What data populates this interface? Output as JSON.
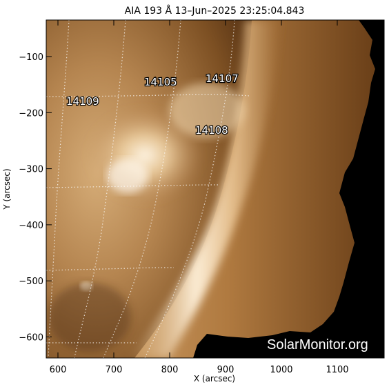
{
  "title": "AIA 193 Å 13–Jun–2025 23:25:04.843",
  "x_axis": {
    "label": "X (arcsec)",
    "ticks": [
      "600",
      "700",
      "800",
      "900",
      "1000",
      "1100"
    ]
  },
  "y_axis": {
    "label": "Y (arcsec)",
    "ticks": [
      "−100",
      "−200",
      "−300",
      "−400",
      "−500",
      "−600"
    ]
  },
  "regions": [
    {
      "id": "14109",
      "label": "14109"
    },
    {
      "id": "14105",
      "label": "14105"
    },
    {
      "id": "14107",
      "label": "14107"
    },
    {
      "id": "14108",
      "label": "14108"
    }
  ],
  "credit": "SolarMonitor.org",
  "colors": {
    "disk_dark": "#5a3514",
    "disk_mid": "#a8773f",
    "disk_bright": "#f0d8b0",
    "limb_glow": "#fff4e0",
    "corona_outer": "#8a5a26",
    "space": "#000000",
    "grid": "#ffffff"
  }
}
